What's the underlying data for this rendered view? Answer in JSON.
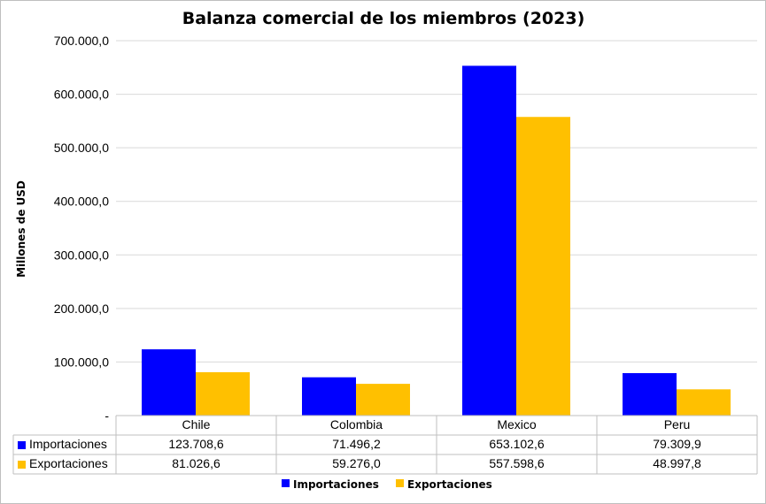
{
  "chart_data": {
    "type": "bar",
    "title": "Balanza comercial de los miembros (2023)",
    "ylabel": "Millones de USD",
    "xlabel": "",
    "categories": [
      "Chile",
      "Colombia",
      "Mexico",
      "Peru"
    ],
    "ylim": [
      0,
      700000
    ],
    "yticks": [
      0,
      100000,
      200000,
      300000,
      400000,
      500000,
      600000,
      700000
    ],
    "ytick_labels": [
      "-",
      "100.000,0",
      "200.000,0",
      "300.000,0",
      "400.000,0",
      "500.000,0",
      "600.000,0",
      "700.000,0"
    ],
    "grid": true,
    "legend_position": "bottom",
    "series": [
      {
        "name": "Importaciones",
        "color": "#0000ff",
        "values": [
          123708.6,
          71496.2,
          653102.6,
          79309.9
        ],
        "value_labels": [
          "123.708,6",
          "71.496,2",
          "653.102,6",
          "79.309,9"
        ]
      },
      {
        "name": "Exportaciones",
        "color": "#ffc000",
        "values": [
          81026.6,
          59276.0,
          557598.6,
          48997.8
        ],
        "value_labels": [
          "81.026,6",
          "59.276,0",
          "557.598,6",
          "48.997,8"
        ]
      }
    ]
  }
}
